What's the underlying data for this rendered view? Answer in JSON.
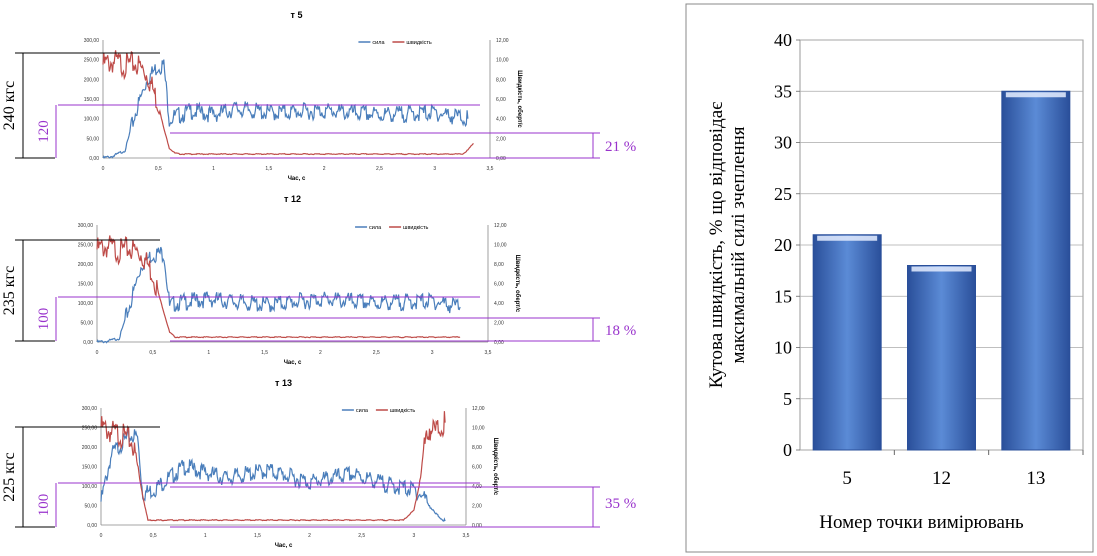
{
  "panels": [
    {
      "title": "т 5",
      "legend": [
        "сила",
        "швидкість"
      ],
      "y_left_ticks": [
        "300,00",
        "250,00",
        "200,00",
        "150,00",
        "100,00",
        "50,00",
        "0,00"
      ],
      "y_right_ticks": [
        "12,00",
        "10,00",
        "8,00",
        "6,00",
        "4,00",
        "2,00",
        "0,00"
      ],
      "x_ticks": [
        "0",
        "0,5",
        "1",
        "1,5",
        "2",
        "2,5",
        "3",
        "3,5"
      ],
      "xlabel": "Час, с",
      "ylabel_right": "Швидкість, оберт/с",
      "force_annotation": "240 кгс",
      "mean_annotation": "120",
      "percent_annotation": "21 %",
      "colors": {
        "force": "#4a7ebb",
        "speed": "#be4b48"
      }
    },
    {
      "title": "т 12",
      "legend": [
        "сила",
        "швидкість"
      ],
      "y_left_ticks": [
        "300,00",
        "250,00",
        "200,00",
        "150,00",
        "100,00",
        "50,00",
        "0,00"
      ],
      "y_right_ticks": [
        "12,00",
        "10,00",
        "8,00",
        "6,00",
        "4,00",
        "2,00",
        "0,00"
      ],
      "x_ticks": [
        "0",
        "0,5",
        "1",
        "1,5",
        "2",
        "2,5",
        "3",
        "3,5"
      ],
      "xlabel": "Час, с",
      "ylabel_right": "Швидкість, оберт/с",
      "force_annotation": "235 кгс",
      "mean_annotation": "100",
      "percent_annotation": "18 %",
      "colors": {
        "force": "#4a7ebb",
        "speed": "#be4b48"
      }
    },
    {
      "title": "т 13",
      "legend": [
        "сила",
        "швидкість"
      ],
      "y_left_ticks": [
        "300,00",
        "250,00",
        "200,00",
        "150,00",
        "100,00",
        "50,00",
        "0,00"
      ],
      "y_right_ticks": [
        "12,00",
        "10,00",
        "8,00",
        "6,00",
        "4,00",
        "2,00",
        "0,00"
      ],
      "x_ticks": [
        "0",
        "0,5",
        "1",
        "1,5",
        "2",
        "2,5",
        "3",
        "3,5"
      ],
      "xlabel": "Час, с",
      "ylabel_right": "Швидкість, оберт/с",
      "force_annotation": "225 кгс",
      "mean_annotation": "100",
      "percent_annotation": "35 %",
      "colors": {
        "force": "#4a7ebb",
        "speed": "#be4b48"
      }
    }
  ],
  "annotation_color": "#9933cc",
  "chart_data": [
    {
      "type": "line",
      "title": "т 5",
      "xlabel": "Час, с",
      "ylabel_right": "Швидкість, оберт/с",
      "xlim": [
        0,
        3.5
      ],
      "ylim_left": [
        0,
        300
      ],
      "ylim_right": [
        0,
        12
      ],
      "series": [
        {
          "name": "сила",
          "axis": "left",
          "x": [
            0,
            0.1,
            0.2,
            0.3,
            0.4,
            0.5,
            0.55,
            0.6,
            0.65,
            0.8,
            1.0,
            1.2,
            1.5,
            2.0,
            2.5,
            3.0,
            3.3
          ],
          "values": [
            0,
            5,
            20,
            120,
            200,
            235,
            235,
            100,
            105,
            120,
            110,
            125,
            115,
            120,
            110,
            115,
            100
          ]
        },
        {
          "name": "швидкість",
          "axis": "right",
          "x": [
            0,
            0.1,
            0.2,
            0.3,
            0.4,
            0.45,
            0.5,
            0.55,
            0.6,
            0.65,
            0.7,
            1.0,
            2.0,
            3.0,
            3.25,
            3.3,
            3.35
          ],
          "values": [
            9.5,
            9.8,
            9.4,
            9.6,
            8.5,
            7.0,
            5.5,
            3.0,
            1.0,
            0.5,
            0.4,
            0.4,
            0.4,
            0.4,
            0.4,
            0.8,
            1.5
          ]
        }
      ]
    },
    {
      "type": "line",
      "title": "т 12",
      "xlabel": "Час, с",
      "ylabel_right": "Швидкість, оберт/с",
      "xlim": [
        0,
        3.5
      ],
      "ylim_left": [
        0,
        300
      ],
      "ylim_right": [
        0,
        12
      ],
      "series": [
        {
          "name": "сила",
          "axis": "left",
          "x": [
            0,
            0.1,
            0.2,
            0.3,
            0.4,
            0.5,
            0.6,
            0.65,
            0.7,
            1.0,
            1.5,
            2.0,
            2.5,
            3.0,
            3.25
          ],
          "values": [
            0,
            2,
            10,
            100,
            200,
            225,
            228,
            90,
            100,
            110,
            95,
            110,
            100,
            105,
            90
          ]
        },
        {
          "name": "швидкість",
          "axis": "right",
          "x": [
            0,
            0.1,
            0.2,
            0.3,
            0.4,
            0.45,
            0.5,
            0.55,
            0.6,
            0.65,
            0.7,
            1.0,
            2.0,
            3.0,
            3.25
          ],
          "values": [
            9.5,
            9.8,
            9.3,
            9.6,
            9.0,
            8.0,
            7.0,
            5.0,
            3.0,
            1.0,
            0.5,
            0.5,
            0.5,
            0.5,
            0.5
          ]
        }
      ]
    },
    {
      "type": "line",
      "title": "т 13",
      "xlabel": "Час, с",
      "ylabel_right": "Швидкість, оберт/с",
      "xlim": [
        0,
        3.5
      ],
      "ylim_left": [
        0,
        300
      ],
      "ylim_right": [
        0,
        12
      ],
      "series": [
        {
          "name": "сила",
          "axis": "left",
          "x": [
            0,
            0.1,
            0.2,
            0.3,
            0.35,
            0.4,
            0.5,
            0.8,
            1.2,
            1.6,
            2.0,
            2.4,
            2.8,
            3.0,
            3.1,
            3.2,
            3.3
          ],
          "values": [
            60,
            180,
            210,
            230,
            225,
            80,
            90,
            150,
            120,
            140,
            110,
            130,
            100,
            90,
            70,
            30,
            10
          ]
        },
        {
          "name": "швидкість",
          "axis": "right",
          "x": [
            0,
            0.1,
            0.2,
            0.3,
            0.35,
            0.4,
            0.45,
            0.5,
            1.0,
            2.0,
            2.9,
            3.0,
            3.05,
            3.1,
            3.15,
            3.2,
            3.3
          ],
          "values": [
            10.0,
            9.5,
            9.2,
            8.5,
            6.0,
            3.0,
            0.5,
            0.5,
            0.5,
            0.5,
            0.5,
            1.5,
            4.0,
            8.0,
            10.0,
            9.5,
            10.5
          ]
        }
      ]
    },
    {
      "type": "bar",
      "categories": [
        "5",
        "12",
        "13"
      ],
      "values": [
        21,
        18,
        35
      ],
      "xlabel": "Номер точки вимірювань",
      "ylabel": "Кутова швидкість, % що відповідає максимальній силі зчеплення",
      "ylim": [
        0,
        40
      ],
      "yticks": [
        "0",
        "5",
        "10",
        "15",
        "20",
        "25",
        "30",
        "35",
        "40"
      ],
      "grid": true,
      "color": "#4472c4"
    }
  ]
}
